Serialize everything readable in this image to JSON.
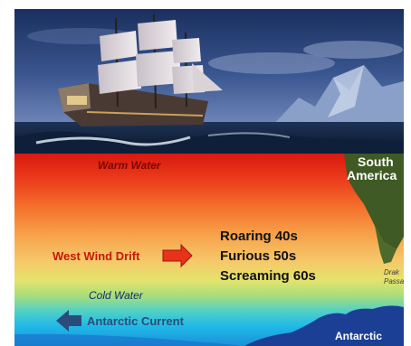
{
  "labels": {
    "warm_water": "Warm Water",
    "south_america_line1": "South",
    "south_america_line2": "America",
    "west_wind_drift": "West Wind Drift",
    "roaring": "Roaring 40s",
    "furious": "Furious 50s",
    "screaming": "Screaming 60s",
    "cold_water": "Cold Water",
    "antarctic_current": "Antarctic Current",
    "drake_line1": "Drak",
    "drake_line2": "Passa",
    "antarctica": "Antarctic"
  },
  "colors": {
    "warm_band": "#e8321a",
    "cold_band": "#1fb8e8",
    "land": "#3f5a24",
    "antarctica": "#1c3f96",
    "wind_arrow": "#e8321a",
    "current_arrow": "#2a4c7a"
  }
}
